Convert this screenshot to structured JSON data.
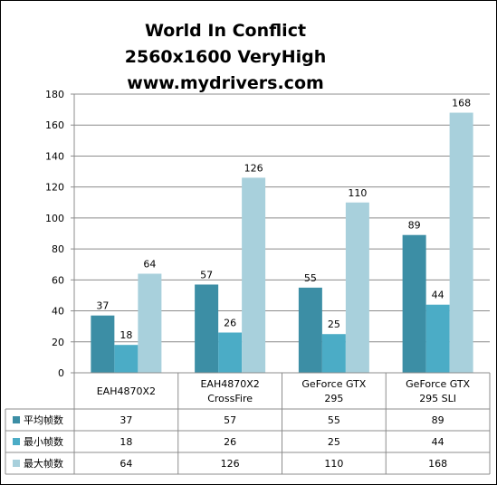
{
  "chart_data": {
    "type": "bar",
    "title": [
      "World In Conflict",
      "2560x1600 VeryHigh",
      "www.mydrivers.com"
    ],
    "categories": [
      [
        "EAH4870X2"
      ],
      [
        "EAH4870X2",
        "CrossFire"
      ],
      [
        "GeForce GTX",
        "295"
      ],
      [
        "GeForce GTX",
        "295 SLI"
      ]
    ],
    "series": [
      {
        "name": "平均帧数",
        "color": "#3c8ea5",
        "values": [
          37,
          57,
          55,
          89
        ]
      },
      {
        "name": "最小帧数",
        "color": "#4bacc6",
        "values": [
          18,
          26,
          25,
          44
        ]
      },
      {
        "name": "最大帧数",
        "color": "#a8d0dc",
        "values": [
          64,
          126,
          110,
          168
        ]
      }
    ],
    "ylim": [
      0,
      180
    ],
    "yticks": [
      0,
      20,
      40,
      60,
      80,
      100,
      120,
      140,
      160,
      180
    ],
    "grid": true,
    "legend": "data-table-left"
  }
}
